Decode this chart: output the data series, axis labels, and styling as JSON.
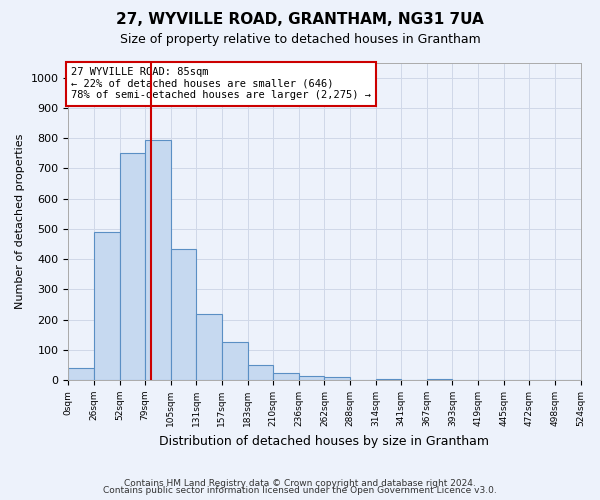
{
  "title": "27, WYVILLE ROAD, GRANTHAM, NG31 7UA",
  "subtitle": "Size of property relative to detached houses in Grantham",
  "xlabel": "Distribution of detached houses by size in Grantham",
  "ylabel": "Number of detached properties",
  "footer1": "Contains HM Land Registry data © Crown copyright and database right 2024.",
  "footer2": "Contains public sector information licensed under the Open Government Licence v3.0.",
  "bin_labels": [
    "0sqm",
    "26sqm",
    "52sqm",
    "79sqm",
    "105sqm",
    "131sqm",
    "157sqm",
    "183sqm",
    "210sqm",
    "236sqm",
    "262sqm",
    "288sqm",
    "314sqm",
    "341sqm",
    "367sqm",
    "393sqm",
    "419sqm",
    "445sqm",
    "472sqm",
    "498sqm",
    "524sqm"
  ],
  "bin_edges": [
    0,
    26,
    52,
    79,
    105,
    131,
    157,
    183,
    210,
    236,
    262,
    288,
    314,
    341,
    367,
    393,
    419,
    445,
    472,
    498,
    524
  ],
  "bar_values": [
    40,
    490,
    750,
    795,
    435,
    220,
    125,
    50,
    25,
    15,
    10,
    0,
    5,
    0,
    5,
    0,
    0,
    0,
    0,
    0
  ],
  "bar_color": "#c6d9f0",
  "bar_edge_color": "#5a8fc4",
  "property_sqm": 85,
  "vline_color": "#cc0000",
  "annotation_line1": "27 WYVILLE ROAD: 85sqm",
  "annotation_line2": "← 22% of detached houses are smaller (646)",
  "annotation_line3": "78% of semi-detached houses are larger (2,275) →",
  "annotation_box_color": "#ffffff",
  "annotation_box_edge_color": "#cc0000",
  "ylim": [
    0,
    1050
  ],
  "yticks": [
    0,
    100,
    200,
    300,
    400,
    500,
    600,
    700,
    800,
    900,
    1000
  ],
  "grid_color": "#d0d8e8",
  "bg_color": "#edf2fb",
  "title_fontsize": 11,
  "subtitle_fontsize": 9
}
